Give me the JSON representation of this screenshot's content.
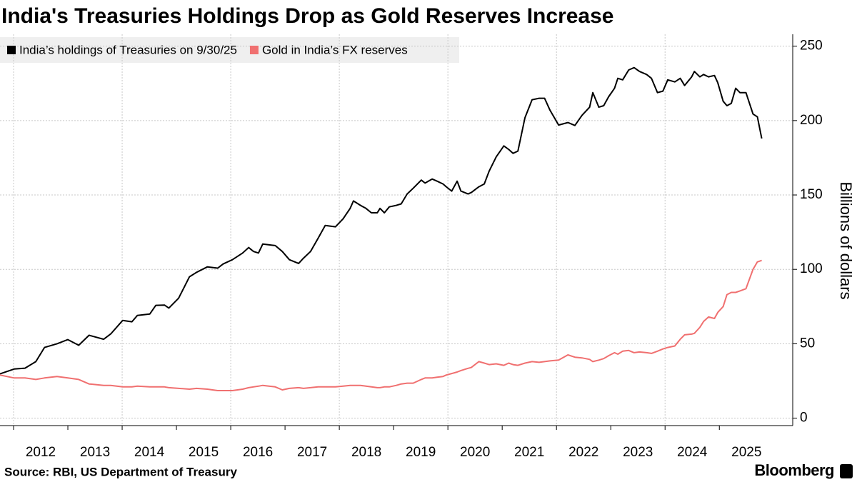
{
  "chart_data": {
    "type": "line",
    "title": "India's Treasuries Holdings Drop as Gold Reserves Increase",
    "y_label": "Billions of dollars",
    "source": "Source: RBI, US Department of Treasury",
    "brand": "Bloomberg",
    "grid": true,
    "legend": "top-left",
    "xlim": [
      2011.75,
      2026.22
    ],
    "xticks": [
      2012,
      2013,
      2014,
      2015,
      2016,
      2017,
      2018,
      2019,
      2020,
      2021,
      2022,
      2023,
      2024,
      2025
    ],
    "ylim": [
      -5,
      258
    ],
    "yticks": [
      0,
      50,
      100,
      150,
      200,
      250
    ],
    "x": [
      2011.75,
      2012.01,
      2012.21,
      2012.41,
      2012.57,
      2012.8,
      2013.0,
      2013.2,
      2013.39,
      2013.66,
      2013.79,
      2014.01,
      2014.18,
      2014.28,
      2014.51,
      2014.62,
      2014.78,
      2014.86,
      2015.04,
      2015.24,
      2015.37,
      2015.57,
      2015.76,
      2015.86,
      2016.03,
      2016.22,
      2016.33,
      2016.42,
      2016.51,
      2016.59,
      2016.82,
      2016.95,
      2017.08,
      2017.25,
      2017.34,
      2017.47,
      2017.61,
      2017.74,
      2017.93,
      2018.07,
      2018.2,
      2018.26,
      2018.39,
      2018.49,
      2018.59,
      2018.7,
      2018.75,
      2018.83,
      2018.92,
      2019.05,
      2019.14,
      2019.25,
      2019.36,
      2019.51,
      2019.58,
      2019.71,
      2019.8,
      2019.91,
      2019.97,
      2020.07,
      2020.17,
      2020.24,
      2020.37,
      2020.43,
      2020.57,
      2020.67,
      2020.76,
      2020.89,
      2021.03,
      2021.12,
      2021.2,
      2021.29,
      2021.42,
      2021.55,
      2021.68,
      2021.78,
      2021.88,
      2022.04,
      2022.21,
      2022.34,
      2022.47,
      2022.61,
      2022.67,
      2022.78,
      2022.87,
      2022.96,
      2023.07,
      2023.13,
      2023.22,
      2023.33,
      2023.43,
      2023.53,
      2023.66,
      2023.75,
      2023.86,
      2023.96,
      2024.05,
      2024.18,
      2024.28,
      2024.36,
      2024.49,
      2024.54,
      2024.64,
      2024.71,
      2024.8,
      2024.91,
      2024.97,
      2025.07,
      2025.14,
      2025.22,
      2025.3,
      2025.38,
      2025.49,
      2025.62,
      2025.7,
      2025.78
    ],
    "series": [
      {
        "name": "India’s holdings of Treasuries on 9/30/25",
        "color": "#000000",
        "values": [
          29.8,
          33,
          33.6,
          38,
          47.5,
          50,
          52.8,
          49,
          55.7,
          53,
          56.6,
          65.7,
          64.8,
          69,
          70,
          75.8,
          76,
          74,
          80.6,
          95,
          98,
          101.7,
          100.8,
          103.6,
          106.5,
          111,
          114.7,
          112,
          111,
          117,
          116,
          112,
          106.5,
          104,
          107.5,
          112,
          121,
          129.5,
          128.6,
          134,
          141,
          146,
          143,
          141,
          138,
          138,
          141,
          138,
          142,
          143,
          144,
          150.7,
          154.5,
          160,
          158,
          160.7,
          159.3,
          157.4,
          155.5,
          152.6,
          159.3,
          152.6,
          150.7,
          151.6,
          155.5,
          157.4,
          166,
          175.6,
          183,
          180.6,
          178,
          179.5,
          202,
          214,
          215,
          215,
          207,
          197,
          198.7,
          196.7,
          203.5,
          209,
          218.8,
          209,
          210,
          216,
          221.7,
          228.4,
          227.4,
          234,
          235.6,
          233,
          231,
          228.4,
          218.8,
          219.8,
          227.4,
          226,
          228.4,
          223.6,
          229.4,
          233,
          229.4,
          231,
          229.4,
          230.3,
          225.5,
          213,
          210,
          211.6,
          221.7,
          218.8,
          218.8,
          204.4,
          202.5,
          188
        ]
      },
      {
        "name": "Gold in India’s FX reserves",
        "color": "#f07070",
        "values": [
          29,
          27,
          27,
          26,
          27,
          28,
          27,
          26,
          23,
          22,
          22,
          21,
          21,
          21.5,
          21,
          21,
          21,
          20.5,
          20,
          19.5,
          20,
          19.5,
          18.5,
          18.5,
          18.5,
          19.5,
          20.5,
          21,
          21.5,
          22,
          21,
          19,
          20,
          20.5,
          20,
          20.5,
          21,
          21,
          21,
          21.5,
          22,
          22,
          22,
          21.5,
          21,
          20.5,
          20.5,
          21,
          21,
          22,
          23,
          23.5,
          23.5,
          26,
          27,
          27,
          27.5,
          28,
          29,
          30,
          31,
          32,
          33.5,
          34,
          38,
          37,
          36,
          36.5,
          35.5,
          37,
          36,
          35.5,
          37,
          38,
          37.5,
          38,
          38.5,
          39,
          42.5,
          41,
          40.5,
          39.5,
          38,
          39,
          40,
          42,
          44,
          43,
          45,
          45.5,
          44,
          44.5,
          44,
          43.5,
          45,
          46.5,
          47.5,
          48.5,
          53,
          56,
          56.5,
          57,
          61,
          65,
          68,
          67,
          71,
          75,
          83,
          84.5,
          84.5,
          85.5,
          87,
          100,
          105,
          106
        ]
      }
    ]
  }
}
